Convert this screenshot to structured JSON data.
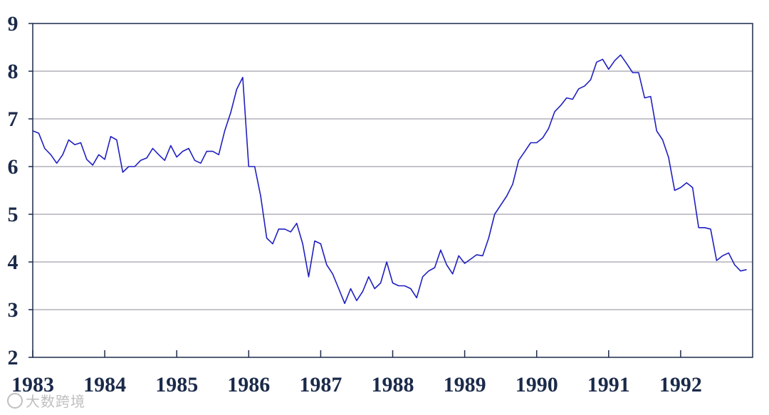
{
  "chart_data": {
    "type": "line",
    "title": "",
    "xlabel": "",
    "ylabel": "",
    "xlim": [
      1983,
      1993
    ],
    "ylim": [
      2,
      9
    ],
    "x_ticks": [
      "1983",
      "1984",
      "1985",
      "1986",
      "1987",
      "1988",
      "1989",
      "1990",
      "1991",
      "1992"
    ],
    "y_ticks": [
      "2",
      "3",
      "4",
      "5",
      "6",
      "7",
      "8",
      "9"
    ],
    "grid": "horizontal",
    "line_color": "#1f1fbf",
    "frame_color": "#1b2a4a",
    "series": [
      {
        "x_start": 1983.0,
        "x_step": 0.0833333,
        "values": [
          6.75,
          6.7,
          6.38,
          6.25,
          6.07,
          6.25,
          6.56,
          6.46,
          6.5,
          6.15,
          6.03,
          6.25,
          6.15,
          6.63,
          6.56,
          5.88,
          6.0,
          6.0,
          6.13,
          6.18,
          6.38,
          6.25,
          6.13,
          6.44,
          6.2,
          6.32,
          6.38,
          6.13,
          6.07,
          6.32,
          6.32,
          6.25,
          6.75,
          7.13,
          7.62,
          7.87,
          6.0,
          6.0,
          5.38,
          4.5,
          4.38,
          4.69,
          4.69,
          4.63,
          4.81,
          4.38,
          3.69,
          4.44,
          4.38,
          3.94,
          3.75,
          3.44,
          3.13,
          3.44,
          3.19,
          3.38,
          3.69,
          3.44,
          3.56,
          4.0,
          3.56,
          3.5,
          3.5,
          3.44,
          3.25,
          3.69,
          3.81,
          3.88,
          4.25,
          3.94,
          3.75,
          4.13,
          3.97,
          4.06,
          4.15,
          4.13,
          4.5,
          5.0,
          5.19,
          5.38,
          5.63,
          6.13,
          6.31,
          6.5,
          6.5,
          6.6,
          6.8,
          7.15,
          7.28,
          7.44,
          7.41,
          7.63,
          7.69,
          7.82,
          8.19,
          8.25,
          8.04,
          8.22,
          8.34,
          8.16,
          7.97,
          7.97,
          7.44,
          7.47,
          6.75,
          6.56,
          6.19,
          5.5,
          5.56,
          5.66,
          5.56,
          4.72,
          4.72,
          4.69,
          4.03,
          4.13,
          4.19,
          3.94,
          3.81,
          3.84
        ]
      }
    ]
  },
  "watermark": {
    "text": "大数跨境"
  }
}
